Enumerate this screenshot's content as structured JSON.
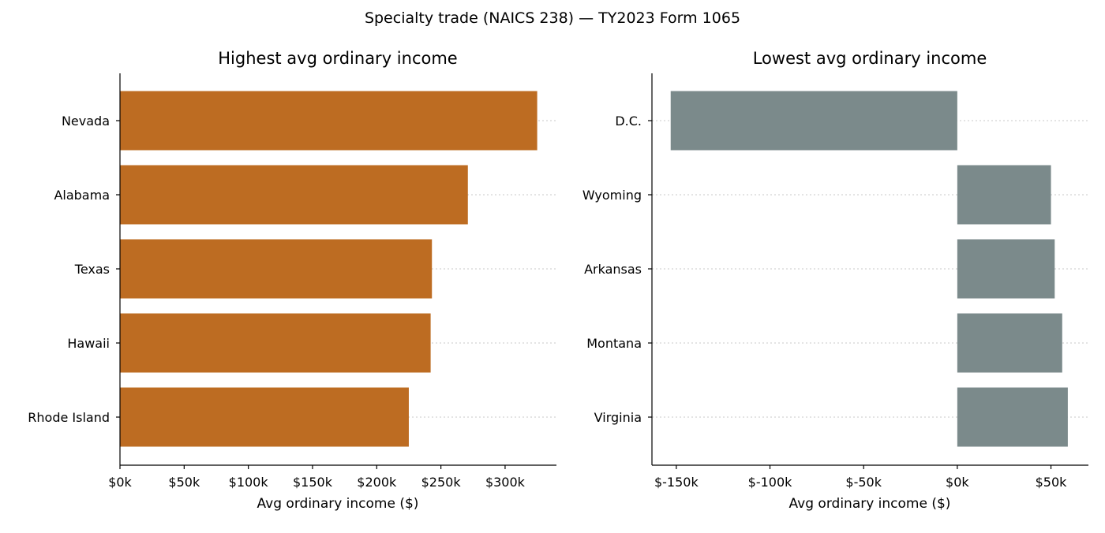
{
  "figure": {
    "suptitle": "Specialty trade (NAICS 238) — TY2023 Form 1065"
  },
  "chart_data": [
    {
      "type": "bar",
      "orientation": "horizontal",
      "title": "Highest avg ordinary income",
      "xlabel": "Avg ordinary income ($)",
      "ylabel": "",
      "categories": [
        "Nevada",
        "Alabama",
        "Texas",
        "Hawaii",
        "Rhode Island"
      ],
      "values": [
        325000,
        271000,
        243000,
        242000,
        225000
      ],
      "xlim": [
        0,
        340000
      ],
      "xticks": [
        0,
        50000,
        100000,
        150000,
        200000,
        250000,
        300000
      ],
      "xtick_labels": [
        "$0k",
        "$50k",
        "$100k",
        "$150k",
        "$200k",
        "$250k",
        "$300k"
      ],
      "color": "#bd6c22",
      "grid": "y-dotted"
    },
    {
      "type": "bar",
      "orientation": "horizontal",
      "title": "Lowest avg ordinary income",
      "xlabel": "Avg ordinary income ($)",
      "ylabel": "",
      "categories": [
        "D.C.",
        "Wyoming",
        "Arkansas",
        "Montana",
        "Virginia"
      ],
      "values": [
        -153000,
        50000,
        52000,
        56000,
        59000
      ],
      "xlim": [
        -163000,
        70000
      ],
      "xticks": [
        -150000,
        -100000,
        -50000,
        0,
        50000
      ],
      "xtick_labels": [
        "$-150k",
        "$-100k",
        "$-50k",
        "$0k",
        "$50k"
      ],
      "color": "#7b8a8b",
      "grid": "y-dotted"
    }
  ]
}
